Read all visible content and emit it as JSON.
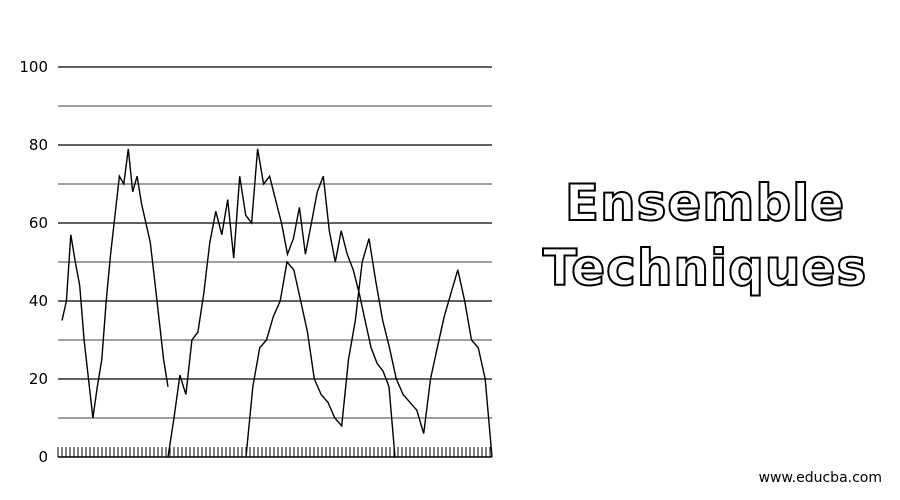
{
  "heading": {
    "line1": "Ensemble",
    "line2": "Techniques"
  },
  "watermark": "www.educba.com",
  "chart_data": {
    "type": "line",
    "title": "",
    "xlabel": "",
    "ylabel": "",
    "ylim": [
      0,
      100
    ],
    "yticks": [
      0,
      20,
      40,
      60,
      80,
      100
    ],
    "grid": true,
    "colors": {
      "line": "#000000",
      "grid": "#000000"
    },
    "series": [
      {
        "values": [
          35,
          40,
          57,
          50,
          44,
          30,
          20,
          10,
          18,
          25,
          40,
          52,
          62,
          72,
          70,
          79,
          68,
          72,
          65,
          60,
          55,
          45,
          35,
          25,
          18
        ]
      },
      {
        "values": [
          0,
          10,
          21,
          16,
          30,
          32,
          42,
          55,
          63,
          57,
          66,
          51,
          72,
          62,
          60,
          79,
          70,
          72,
          66,
          60,
          52,
          56,
          64,
          52,
          60,
          68,
          72,
          58,
          50,
          58,
          52,
          48,
          42,
          35,
          28,
          24,
          22,
          18,
          0
        ]
      },
      {
        "values": [
          0,
          18,
          28,
          30,
          36,
          40,
          50,
          48,
          40,
          32,
          20,
          16,
          14,
          10,
          8,
          25,
          35,
          50,
          56,
          45,
          35,
          28,
          20,
          16,
          14,
          12,
          6,
          20,
          28,
          36,
          42,
          48,
          40,
          30,
          28,
          20,
          0
        ]
      }
    ]
  }
}
